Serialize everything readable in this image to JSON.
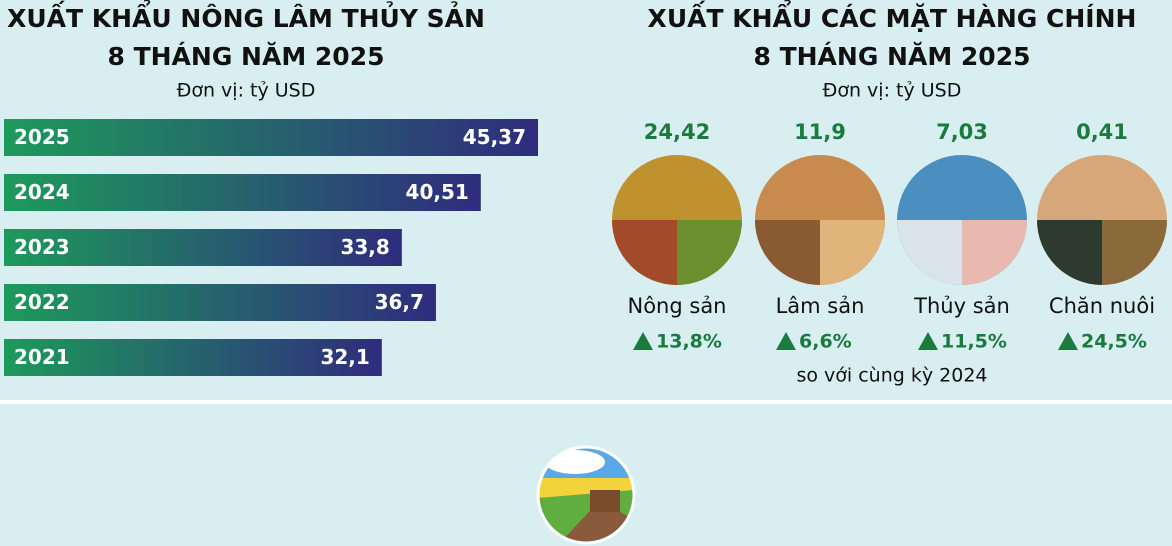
{
  "chart_data": [
    {
      "type": "hbar",
      "title": [
        "XUẤT KHẨU NÔNG LÂM THỦY SẢN",
        "8 THÁNG NĂM 2025"
      ],
      "subtitle": "Đơn vị: tỷ USD",
      "categories": [
        "2025",
        "2024",
        "2023",
        "2022",
        "2021"
      ],
      "values": [
        45.37,
        40.51,
        33.8,
        36.7,
        32.1
      ],
      "value_labels": [
        "45,37",
        "40,51",
        "33,8",
        "36,7",
        "32,1"
      ],
      "color_start": "#1d9a5b",
      "color_end": "#2f2c7e"
    },
    {
      "type": "pictogram",
      "title": [
        "XUẤT KHẨU CÁC MẶT HÀNG CHÍNH",
        "8 THÁNG NĂM 2025"
      ],
      "subtitle": "Đơn vị: tỷ USD",
      "categories": [
        "Nông sản",
        "Lâm sản",
        "Thủy sản",
        "Chăn nuôi"
      ],
      "values": [
        24.42,
        11.9,
        7.03,
        0.41
      ],
      "value_labels": [
        "24,42",
        "11,9",
        "7,03",
        "0,41"
      ],
      "change": {
        "values": [
          13.8,
          6.6,
          11.5,
          24.5
        ],
        "value_labels": [
          "13,8%",
          "6,6%",
          "11,5%",
          "24,5%"
        ]
      },
      "note": "so với cùng kỳ 2024",
      "color": "#1a7a3f"
    }
  ]
}
